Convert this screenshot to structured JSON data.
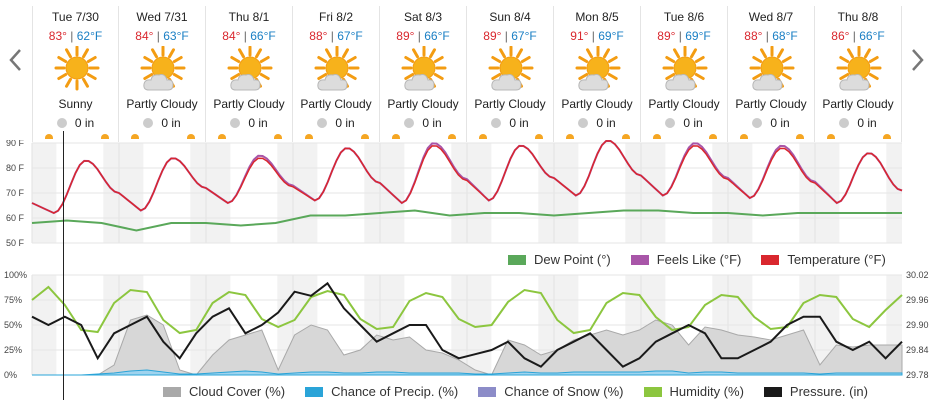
{
  "nav": {
    "prev_icon": "chevron-left-icon",
    "next_icon": "chevron-right-icon"
  },
  "days": [
    {
      "label": "Tue 7/30",
      "hi": "83°",
      "lo": "62°F",
      "condition": "Sunny",
      "icon": "sunny-icon",
      "precip": "0 in"
    },
    {
      "label": "Wed 7/31",
      "hi": "84°",
      "lo": "63°F",
      "condition": "Partly Cloudy",
      "icon": "partly-cloudy-icon",
      "precip": "0 in"
    },
    {
      "label": "Thu 8/1",
      "hi": "84°",
      "lo": "66°F",
      "condition": "Partly Cloudy",
      "icon": "partly-cloudy-icon",
      "precip": "0 in"
    },
    {
      "label": "Fri 8/2",
      "hi": "88°",
      "lo": "67°F",
      "condition": "Partly Cloudy",
      "icon": "partly-cloudy-icon",
      "precip": "0 in"
    },
    {
      "label": "Sat 8/3",
      "hi": "89°",
      "lo": "66°F",
      "condition": "Partly Cloudy",
      "icon": "partly-cloudy-icon",
      "precip": "0 in"
    },
    {
      "label": "Sun 8/4",
      "hi": "89°",
      "lo": "67°F",
      "condition": "Partly Cloudy",
      "icon": "partly-cloudy-icon",
      "precip": "0 in"
    },
    {
      "label": "Mon 8/5",
      "hi": "91°",
      "lo": "69°F",
      "condition": "Partly Cloudy",
      "icon": "partly-cloudy-icon",
      "precip": "0 in"
    },
    {
      "label": "Tue 8/6",
      "hi": "89°",
      "lo": "69°F",
      "condition": "Partly Cloudy",
      "icon": "partly-cloudy-icon",
      "precip": "0 in"
    },
    {
      "label": "Wed 8/7",
      "hi": "88°",
      "lo": "68°F",
      "condition": "Partly Cloudy",
      "icon": "partly-cloudy-icon",
      "precip": "0 in"
    },
    {
      "label": "Thu 8/8",
      "hi": "86°",
      "lo": "66°F",
      "condition": "Partly Cloudy",
      "icon": "partly-cloudy-icon",
      "precip": "0 in"
    }
  ],
  "colors": {
    "temperature": "#d9272e",
    "feels_like": "#a855a8",
    "dew_point": "#5aa85a",
    "cloud_cover": "#a9a9a9",
    "chance_precip": "#2aa4d8",
    "chance_snow": "#8c8cc8",
    "humidity": "#8cc63f",
    "pressure": "#1a1a1a",
    "hi_temp": "#d9272e",
    "lo_temp": "#1a7fc4"
  },
  "chart_data": [
    {
      "type": "line",
      "title": "",
      "x_unit": "day",
      "ylim": [
        50,
        90
      ],
      "y_ticks": [
        "90 F",
        "80 F",
        "70 F",
        "60 F",
        "50 F"
      ],
      "legend": [
        "Dew Point (°)",
        "Feels Like (°F)",
        "Temperature (°F)"
      ],
      "legend_placement": "bottom-right",
      "series": [
        {
          "name": "Temperature (°F)",
          "key": "temperature",
          "lows": [
            62,
            63,
            66,
            67,
            66,
            67,
            69,
            69,
            68,
            66
          ],
          "highs": [
            83,
            84,
            84,
            88,
            89,
            89,
            91,
            89,
            88,
            86
          ],
          "start": 66,
          "end": 71
        },
        {
          "name": "Feels Like (°F)",
          "key": "feels_like",
          "lows": [
            62,
            63,
            66,
            67,
            66,
            67,
            69,
            69,
            68,
            66
          ],
          "highs": [
            83,
            84,
            85,
            88,
            90,
            89,
            91,
            90,
            89,
            86
          ],
          "start": 66,
          "end": 71
        },
        {
          "name": "Dew Point (°)",
          "key": "dew_point",
          "values": [
            58,
            59,
            58,
            55,
            58,
            58,
            57,
            58,
            61,
            61,
            62,
            63,
            61,
            62,
            62,
            61,
            62,
            63,
            63,
            62,
            62,
            61,
            62,
            62,
            62,
            62
          ]
        }
      ]
    },
    {
      "type": "line",
      "title": "",
      "ylim": [
        0,
        100
      ],
      "y_ticks": [
        "100%",
        "75%",
        "50%",
        "25%",
        "0%"
      ],
      "y2_ticks": [
        "30.02",
        "29.96",
        "29.90",
        "29.84",
        "29.78"
      ],
      "y2lim": [
        29.78,
        30.02
      ],
      "legend": [
        "Cloud Cover (%)",
        "Chance of Precip. (%)",
        "Chance of Snow (%)",
        "Humidity (%)",
        "Pressure. (in)"
      ],
      "legend_placement": "bottom",
      "series": [
        {
          "name": "Humidity (%)",
          "key": "humidity",
          "values": [
            75,
            88,
            70,
            45,
            43,
            72,
            85,
            83,
            55,
            42,
            45,
            72,
            83,
            80,
            56,
            48,
            55,
            78,
            84,
            80,
            56,
            46,
            48,
            74,
            82,
            78,
            56,
            48,
            50,
            73,
            85,
            82,
            55,
            42,
            45,
            72,
            82,
            80,
            58,
            45,
            48,
            70,
            80,
            78,
            58,
            46,
            48,
            72,
            80,
            78,
            56,
            48,
            65,
            80
          ]
        },
        {
          "name": "Cloud Cover (%)",
          "key": "cloud_cover",
          "values": [
            0,
            0,
            0,
            0,
            0,
            10,
            55,
            60,
            50,
            5,
            0,
            20,
            35,
            40,
            45,
            5,
            40,
            50,
            45,
            20,
            25,
            40,
            35,
            38,
            25,
            22,
            15,
            5,
            0,
            35,
            30,
            20,
            25,
            35,
            40,
            45,
            40,
            45,
            55,
            50,
            30,
            48,
            45,
            40,
            38,
            35,
            40,
            45,
            10,
            30,
            28,
            30,
            30,
            30
          ]
        },
        {
          "name": "Chance of Precip. (%)",
          "key": "chance_precip",
          "values": [
            0,
            0,
            0,
            0,
            1,
            2,
            4,
            5,
            3,
            1,
            1,
            2,
            3,
            4,
            3,
            1,
            2,
            3,
            3,
            2,
            2,
            3,
            3,
            2,
            2,
            2,
            2,
            1,
            1,
            2,
            3,
            2,
            2,
            3,
            3,
            3,
            3,
            3,
            4,
            4,
            2,
            3,
            3,
            2,
            2,
            2,
            2,
            2,
            1,
            2,
            2,
            2,
            2,
            2
          ]
        },
        {
          "name": "Pressure. (in)",
          "key": "pressure",
          "values": [
            29.92,
            29.9,
            29.92,
            29.9,
            29.82,
            29.88,
            29.9,
            29.92,
            29.86,
            29.82,
            29.88,
            29.92,
            29.94,
            29.88,
            29.9,
            29.93,
            29.98,
            29.97,
            30.0,
            29.94,
            29.9,
            29.86,
            29.88,
            29.9,
            29.9,
            29.84,
            29.82,
            29.83,
            29.84,
            29.86,
            29.82,
            29.8,
            29.84,
            29.86,
            29.88,
            29.84,
            29.8,
            29.82,
            29.86,
            29.88,
            29.9,
            29.88,
            29.82,
            29.82,
            29.84,
            29.86,
            29.9,
            29.92,
            29.92,
            29.86,
            29.84,
            29.86,
            29.82,
            29.86
          ]
        }
      ]
    }
  ]
}
